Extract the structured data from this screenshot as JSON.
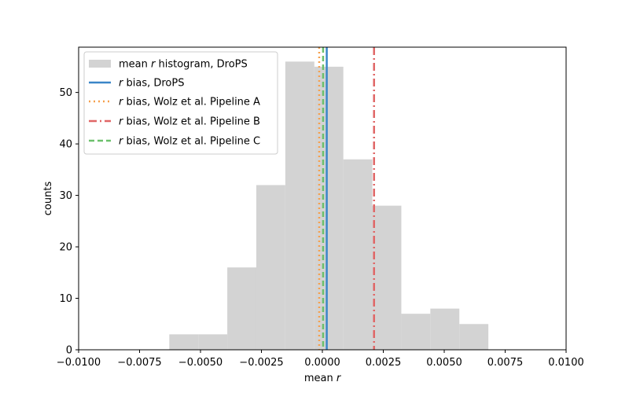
{
  "chart_data": {
    "type": "bar",
    "subtype": "histogram",
    "xlabel_plain": "mean ",
    "xlabel_italic": "r",
    "ylabel": "counts",
    "xlim": [
      -0.01,
      0.01
    ],
    "ylim": [
      0,
      58.8
    ],
    "x_ticks": [
      -0.01,
      -0.0075,
      -0.005,
      -0.0025,
      0.0,
      0.0025,
      0.005,
      0.0075,
      0.01
    ],
    "x_tick_labels": [
      "−0.0100",
      "−0.0075",
      "−0.0050",
      "−0.0025",
      "0.0000",
      "0.0025",
      "0.0050",
      "0.0075",
      "0.0100"
    ],
    "y_ticks": [
      0,
      10,
      20,
      30,
      40,
      50
    ],
    "y_tick_labels": [
      "0",
      "10",
      "20",
      "30",
      "40",
      "50"
    ],
    "histogram": {
      "name": "mean r histogram, DroPS",
      "color": "#d3d3d3",
      "bins": [
        {
          "start": -0.00628,
          "end": -0.00509,
          "count": 3
        },
        {
          "start": -0.00509,
          "end": -0.0039,
          "count": 3
        },
        {
          "start": -0.0039,
          "end": -0.00271,
          "count": 16
        },
        {
          "start": -0.00271,
          "end": -0.00152,
          "count": 32
        },
        {
          "start": -0.00152,
          "end": -0.00033,
          "count": 56
        },
        {
          "start": -0.00033,
          "end": 0.00086,
          "count": 55
        },
        {
          "start": 0.00086,
          "end": 0.00205,
          "count": 37
        },
        {
          "start": 0.00205,
          "end": 0.00324,
          "count": 28
        },
        {
          "start": 0.00324,
          "end": 0.00443,
          "count": 7
        },
        {
          "start": 0.00443,
          "end": 0.00562,
          "count": 8
        },
        {
          "start": 0.00562,
          "end": 0.00681,
          "count": 5
        }
      ]
    },
    "vlines": [
      {
        "name": "r bias, DroPS",
        "x": 0.00018,
        "color": "#3a86c8",
        "style": "solid"
      },
      {
        "name": "r bias, Wolz et al. Pipeline A",
        "x": -0.00013,
        "color": "#f6a04d",
        "style": "dotted"
      },
      {
        "name": "r bias, Wolz et al. Pipeline B",
        "x": 0.00212,
        "color": "#e06666",
        "style": "dashdot"
      },
      {
        "name": "r bias, Wolz et al. Pipeline C",
        "x": 3e-05,
        "color": "#6cc06c",
        "style": "dashed"
      }
    ],
    "legend": {
      "placement": "top-left",
      "entries": [
        {
          "italic": "r",
          "pre": "mean ",
          "post": " histogram, DroPS"
        },
        {
          "italic": "r",
          "pre": "",
          "post": " bias, DroPS"
        },
        {
          "italic": "r",
          "pre": "",
          "post": " bias, Wolz et al. Pipeline A"
        },
        {
          "italic": "r",
          "pre": "",
          "post": " bias, Wolz et al. Pipeline B"
        },
        {
          "italic": "r",
          "pre": "",
          "post": " bias, Wolz et al. Pipeline C"
        }
      ]
    }
  }
}
